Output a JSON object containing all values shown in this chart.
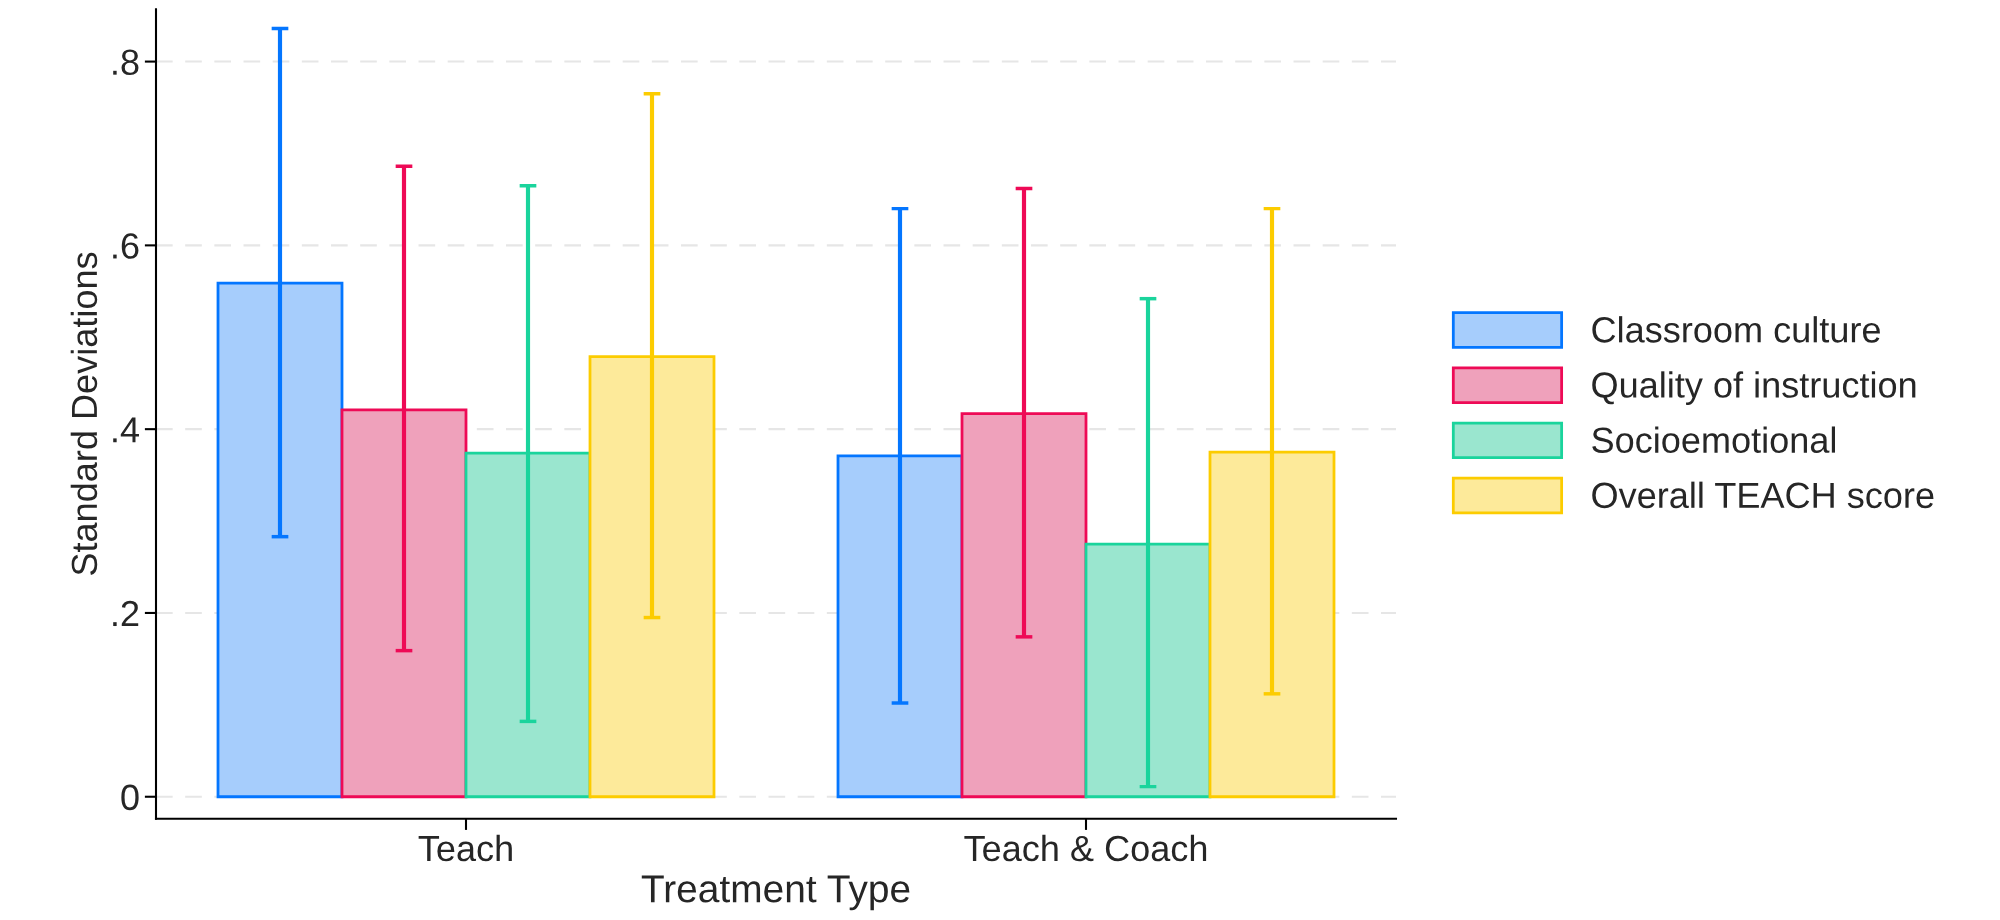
{
  "chart_data": {
    "type": "bar",
    "xlabel": "Treatment Type",
    "ylabel": "Standard Deviations",
    "categories": [
      "Teach",
      "Teach & Coach"
    ],
    "series": [
      {
        "name": "Classroom culture",
        "color": "#a6cdfc",
        "values": [
          0.559,
          0.371
        ],
        "errors": [
          [
            0.283,
            0.836
          ],
          [
            0.102,
            0.64
          ]
        ]
      },
      {
        "name": "Quality of instruction",
        "color": "#efa1bb",
        "values": [
          0.421,
          0.417
        ],
        "errors": [
          [
            0.159,
            0.686
          ],
          [
            0.174,
            0.662
          ]
        ]
      },
      {
        "name": "Socioemotional",
        "color": "#9ae6cf",
        "values": [
          0.374,
          0.275
        ],
        "errors": [
          [
            0.082,
            0.665
          ],
          [
            0.011,
            0.542
          ]
        ]
      },
      {
        "name": "Overall TEACH score",
        "color": "#fdea9a",
        "values": [
          0.479,
          0.375
        ],
        "errors": [
          [
            0.195,
            0.765
          ],
          [
            0.112,
            0.64
          ]
        ]
      }
    ],
    "ylim": [
      -0.024,
      0.857
    ],
    "yticks": [
      {
        "value": 0,
        "label": "0"
      },
      {
        "value": 0.2,
        "label": ".2"
      },
      {
        "value": 0.4,
        "label": ".4"
      },
      {
        "value": 0.6,
        "label": ".6"
      },
      {
        "value": 0.8,
        "label": ".8"
      }
    ],
    "grid": "y",
    "legend": "right"
  }
}
